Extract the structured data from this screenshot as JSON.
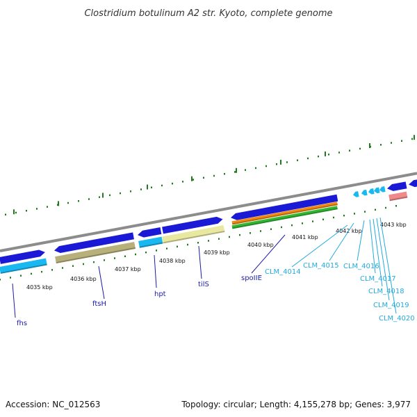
{
  "title": "Clostridium botulinum A2 str. Kyoto, complete genome",
  "footer": {
    "accession": "Accession: NC_012563",
    "topology": "Topology: circular; Length: 4,155,278 bp; Genes: 3,977"
  },
  "colors": {
    "background": "#ffffff",
    "backbone": "#8c8c8c",
    "forward_cds": "#1a1ad6",
    "rrna_like": "#e8e8a0",
    "orange_feature": "#f08a10",
    "green_feature": "#33b833",
    "cyan_feature": "#1ab8f0",
    "olive_feature": "#b8b07a",
    "pink_feature": "#f08a8a",
    "tick_color": "#1f7a1f",
    "dark_label": "#1a1aa8",
    "light_label": "#22aadd"
  },
  "scale": {
    "unit": "kbp",
    "labels": [
      "4035 kbp",
      "4036 kbp",
      "4037 kbp",
      "4038 kbp",
      "4039 kbp",
      "4040 kbp",
      "4041 kbp",
      "4042 kbp",
      "4043 kbp"
    ]
  },
  "gene_labels": [
    {
      "name": "fhs",
      "style": "dark"
    },
    {
      "name": "ftsH",
      "style": "dark"
    },
    {
      "name": "hpt",
      "style": "dark"
    },
    {
      "name": "tilS",
      "style": "dark"
    },
    {
      "name": "spoIIE",
      "style": "dark"
    },
    {
      "name": "CLM_4014",
      "style": "light"
    },
    {
      "name": "CLM_4015",
      "style": "light"
    },
    {
      "name": "CLM_4016",
      "style": "light"
    },
    {
      "name": "CLM_4017",
      "style": "light"
    },
    {
      "name": "CLM_4018",
      "style": "light"
    },
    {
      "name": "CLM_4019",
      "style": "light"
    },
    {
      "name": "CLM_4020",
      "style": "light"
    }
  ]
}
